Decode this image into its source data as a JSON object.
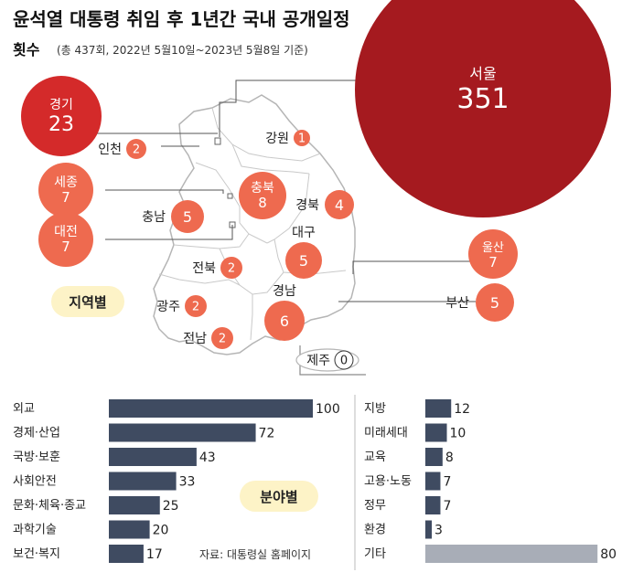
{
  "title": "윤석열 대통령 취임 후 1년간 국내 공개일정",
  "subtitle_bold": "횟수",
  "subtitle_note": "(총 437회, 2022년 5월10일~2023년 5월8일 기준)",
  "map_badge": "지역별",
  "bar_badge": "분야별",
  "source": "자료: 대통령실 홈페이지",
  "colors": {
    "seoul": "#a51a1f",
    "gyeonggi": "#d42a2a",
    "region": "#ee6a4f",
    "bar_dark": "#3f4b61",
    "bar_gray": "#a8adb7",
    "badge_bg": "#fdf3c7",
    "land": "#ffffff",
    "outline": "#b5b5b5"
  },
  "chart_data": [
    {
      "type": "bubble-map",
      "regions": [
        {
          "name": "서울",
          "value": 351
        },
        {
          "name": "경기",
          "value": 23
        },
        {
          "name": "인천",
          "value": 2
        },
        {
          "name": "강원",
          "value": 1
        },
        {
          "name": "세종",
          "value": 7
        },
        {
          "name": "충북",
          "value": 8
        },
        {
          "name": "경북",
          "value": 4
        },
        {
          "name": "충남",
          "value": 5
        },
        {
          "name": "대전",
          "value": 7
        },
        {
          "name": "대구",
          "value": 5
        },
        {
          "name": "울산",
          "value": 7
        },
        {
          "name": "전북",
          "value": 2
        },
        {
          "name": "경남",
          "value": 6
        },
        {
          "name": "부산",
          "value": 5
        },
        {
          "name": "광주",
          "value": 2
        },
        {
          "name": "전남",
          "value": 2
        },
        {
          "name": "제주",
          "value": 0
        }
      ]
    },
    {
      "type": "bar",
      "orientation": "horizontal",
      "categories": [
        "외교",
        "경제·산업",
        "국방·보훈",
        "사회안전",
        "문화·체육·종교",
        "과학기술",
        "보건·복지"
      ],
      "values": [
        100,
        72,
        43,
        33,
        25,
        20,
        17
      ]
    },
    {
      "type": "bar",
      "orientation": "horizontal",
      "categories": [
        "지방",
        "미래세대",
        "교육",
        "고용·노동",
        "정무",
        "환경",
        "기타"
      ],
      "values": [
        12,
        10,
        8,
        7,
        7,
        3,
        80
      ]
    }
  ]
}
